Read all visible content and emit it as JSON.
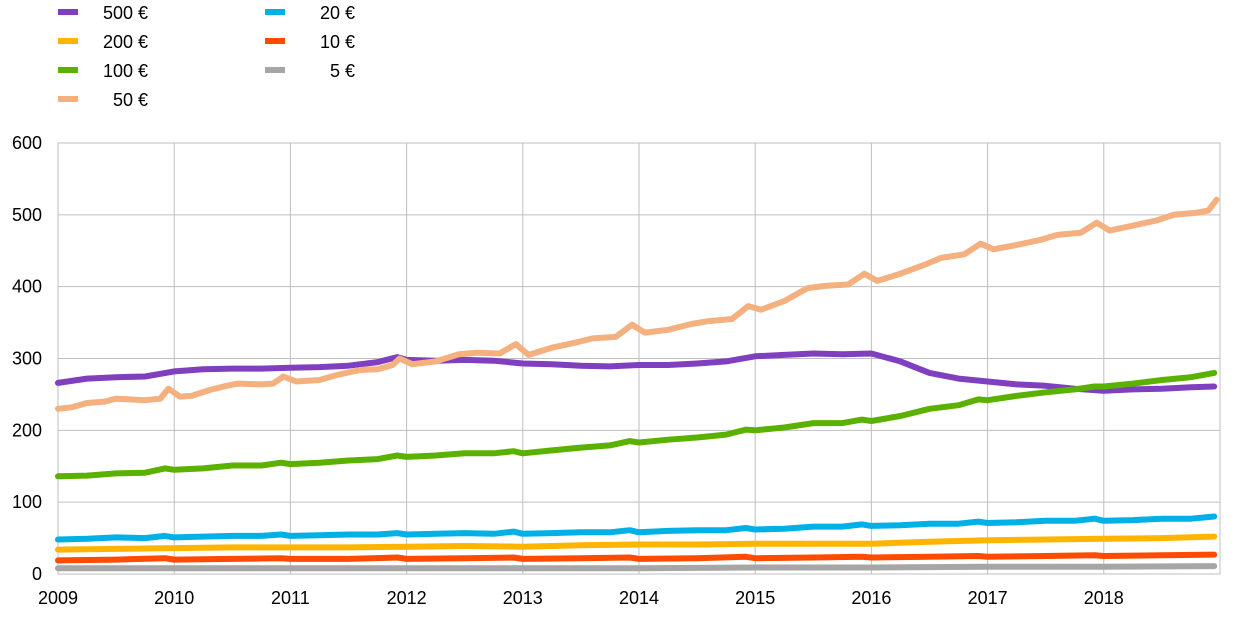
{
  "chart_data": {
    "type": "line",
    "title": "",
    "xlabel": "",
    "ylabel": "",
    "x_start": 2009.0,
    "x_end": 2019.0,
    "x_ticks": [
      "2009",
      "2010",
      "2011",
      "2012",
      "2013",
      "2014",
      "2015",
      "2016",
      "2017",
      "2018"
    ],
    "ylim": [
      0,
      600
    ],
    "y_ticks": [
      "0",
      "100",
      "200",
      "300",
      "400",
      "500",
      "600"
    ],
    "grid": true,
    "legend_position": "top-left",
    "series": [
      {
        "name": "500 €",
        "color": "#7f3fbf",
        "points": [
          [
            2009.0,
            266
          ],
          [
            2009.25,
            272
          ],
          [
            2009.5,
            274
          ],
          [
            2009.75,
            275
          ],
          [
            2010.0,
            282
          ],
          [
            2010.25,
            285
          ],
          [
            2010.5,
            286
          ],
          [
            2010.75,
            286
          ],
          [
            2011.0,
            287
          ],
          [
            2011.25,
            288
          ],
          [
            2011.5,
            290
          ],
          [
            2011.75,
            295
          ],
          [
            2011.92,
            302
          ],
          [
            2012.0,
            298
          ],
          [
            2012.25,
            297
          ],
          [
            2012.5,
            298
          ],
          [
            2012.75,
            297
          ],
          [
            2013.0,
            293
          ],
          [
            2013.25,
            292
          ],
          [
            2013.5,
            290
          ],
          [
            2013.75,
            289
          ],
          [
            2014.0,
            291
          ],
          [
            2014.25,
            291
          ],
          [
            2014.5,
            293
          ],
          [
            2014.75,
            296
          ],
          [
            2015.0,
            303
          ],
          [
            2015.25,
            305
          ],
          [
            2015.5,
            307
          ],
          [
            2015.75,
            306
          ],
          [
            2016.0,
            307
          ],
          [
            2016.25,
            296
          ],
          [
            2016.5,
            280
          ],
          [
            2016.75,
            272
          ],
          [
            2017.0,
            268
          ],
          [
            2017.25,
            264
          ],
          [
            2017.5,
            262
          ],
          [
            2017.75,
            258
          ],
          [
            2018.0,
            255
          ],
          [
            2018.25,
            257
          ],
          [
            2018.5,
            258
          ],
          [
            2018.75,
            260
          ],
          [
            2018.95,
            261
          ]
        ]
      },
      {
        "name": "200 €",
        "color": "#ffb400",
        "points": [
          [
            2009.0,
            34
          ],
          [
            2009.5,
            35
          ],
          [
            2010.0,
            36
          ],
          [
            2010.5,
            37
          ],
          [
            2011.0,
            37
          ],
          [
            2011.5,
            37
          ],
          [
            2012.0,
            38
          ],
          [
            2012.5,
            39
          ],
          [
            2013.0,
            38
          ],
          [
            2013.5,
            40
          ],
          [
            2014.0,
            41
          ],
          [
            2014.5,
            41
          ],
          [
            2015.0,
            42
          ],
          [
            2015.5,
            42
          ],
          [
            2016.0,
            42
          ],
          [
            2016.5,
            45
          ],
          [
            2017.0,
            47
          ],
          [
            2017.5,
            48
          ],
          [
            2018.0,
            49
          ],
          [
            2018.5,
            50
          ],
          [
            2018.95,
            52
          ]
        ]
      },
      {
        "name": "100 €",
        "color": "#5bb100",
        "points": [
          [
            2009.0,
            136
          ],
          [
            2009.25,
            137
          ],
          [
            2009.5,
            140
          ],
          [
            2009.75,
            141
          ],
          [
            2009.92,
            147
          ],
          [
            2010.0,
            145
          ],
          [
            2010.25,
            147
          ],
          [
            2010.5,
            151
          ],
          [
            2010.75,
            151
          ],
          [
            2010.92,
            155
          ],
          [
            2011.0,
            153
          ],
          [
            2011.25,
            155
          ],
          [
            2011.5,
            158
          ],
          [
            2011.75,
            160
          ],
          [
            2011.92,
            165
          ],
          [
            2012.0,
            163
          ],
          [
            2012.25,
            165
          ],
          [
            2012.5,
            168
          ],
          [
            2012.75,
            168
          ],
          [
            2012.92,
            171
          ],
          [
            2013.0,
            168
          ],
          [
            2013.25,
            172
          ],
          [
            2013.5,
            176
          ],
          [
            2013.75,
            179
          ],
          [
            2013.92,
            185
          ],
          [
            2014.0,
            183
          ],
          [
            2014.25,
            187
          ],
          [
            2014.5,
            190
          ],
          [
            2014.75,
            194
          ],
          [
            2014.92,
            201
          ],
          [
            2015.0,
            200
          ],
          [
            2015.25,
            204
          ],
          [
            2015.5,
            210
          ],
          [
            2015.75,
            210
          ],
          [
            2015.92,
            215
          ],
          [
            2016.0,
            213
          ],
          [
            2016.25,
            220
          ],
          [
            2016.5,
            230
          ],
          [
            2016.75,
            235
          ],
          [
            2016.92,
            243
          ],
          [
            2017.0,
            242
          ],
          [
            2017.25,
            248
          ],
          [
            2017.5,
            253
          ],
          [
            2017.75,
            257
          ],
          [
            2017.92,
            261
          ],
          [
            2018.0,
            261
          ],
          [
            2018.25,
            265
          ],
          [
            2018.5,
            270
          ],
          [
            2018.75,
            274
          ],
          [
            2018.95,
            280
          ]
        ]
      },
      {
        "name": "50 €",
        "color": "#f5b080",
        "points": [
          [
            2009.0,
            230
          ],
          [
            2009.12,
            232
          ],
          [
            2009.25,
            238
          ],
          [
            2009.4,
            240
          ],
          [
            2009.5,
            244
          ],
          [
            2009.75,
            242
          ],
          [
            2009.88,
            244
          ],
          [
            2009.95,
            258
          ],
          [
            2010.05,
            247
          ],
          [
            2010.15,
            248
          ],
          [
            2010.3,
            256
          ],
          [
            2010.45,
            262
          ],
          [
            2010.55,
            265
          ],
          [
            2010.75,
            264
          ],
          [
            2010.85,
            265
          ],
          [
            2010.94,
            275
          ],
          [
            2011.05,
            268
          ],
          [
            2011.25,
            270
          ],
          [
            2011.4,
            277
          ],
          [
            2011.6,
            284
          ],
          [
            2011.75,
            285
          ],
          [
            2011.88,
            291
          ],
          [
            2011.94,
            300
          ],
          [
            2012.05,
            292
          ],
          [
            2012.25,
            296
          ],
          [
            2012.45,
            306
          ],
          [
            2012.6,
            308
          ],
          [
            2012.8,
            307
          ],
          [
            2012.94,
            320
          ],
          [
            2013.05,
            305
          ],
          [
            2013.25,
            315
          ],
          [
            2013.45,
            322
          ],
          [
            2013.6,
            328
          ],
          [
            2013.8,
            330
          ],
          [
            2013.94,
            347
          ],
          [
            2014.05,
            336
          ],
          [
            2014.25,
            340
          ],
          [
            2014.45,
            348
          ],
          [
            2014.6,
            352
          ],
          [
            2014.8,
            355
          ],
          [
            2014.94,
            373
          ],
          [
            2015.05,
            368
          ],
          [
            2015.25,
            380
          ],
          [
            2015.45,
            398
          ],
          [
            2015.6,
            401
          ],
          [
            2015.8,
            403
          ],
          [
            2015.94,
            418
          ],
          [
            2016.05,
            408
          ],
          [
            2016.25,
            418
          ],
          [
            2016.45,
            430
          ],
          [
            2016.6,
            440
          ],
          [
            2016.8,
            445
          ],
          [
            2016.94,
            460
          ],
          [
            2017.05,
            452
          ],
          [
            2017.25,
            458
          ],
          [
            2017.45,
            465
          ],
          [
            2017.6,
            472
          ],
          [
            2017.8,
            475
          ],
          [
            2017.94,
            489
          ],
          [
            2018.05,
            478
          ],
          [
            2018.25,
            485
          ],
          [
            2018.45,
            492
          ],
          [
            2018.6,
            500
          ],
          [
            2018.8,
            503
          ],
          [
            2018.9,
            506
          ],
          [
            2018.97,
            521
          ]
        ]
      },
      {
        "name": "20 €",
        "color": "#00b0e6",
        "points": [
          [
            2009.0,
            48
          ],
          [
            2009.25,
            49
          ],
          [
            2009.5,
            51
          ],
          [
            2009.75,
            50
          ],
          [
            2009.92,
            53
          ],
          [
            2010.0,
            51
          ],
          [
            2010.25,
            52
          ],
          [
            2010.5,
            53
          ],
          [
            2010.75,
            53
          ],
          [
            2010.92,
            55
          ],
          [
            2011.0,
            53
          ],
          [
            2011.25,
            54
          ],
          [
            2011.5,
            55
          ],
          [
            2011.75,
            55
          ],
          [
            2011.92,
            57
          ],
          [
            2012.0,
            55
          ],
          [
            2012.25,
            56
          ],
          [
            2012.5,
            57
          ],
          [
            2012.75,
            56
          ],
          [
            2012.92,
            59
          ],
          [
            2013.0,
            56
          ],
          [
            2013.25,
            57
          ],
          [
            2013.5,
            58
          ],
          [
            2013.75,
            58
          ],
          [
            2013.92,
            61
          ],
          [
            2014.0,
            58
          ],
          [
            2014.25,
            60
          ],
          [
            2014.5,
            61
          ],
          [
            2014.75,
            61
          ],
          [
            2014.92,
            64
          ],
          [
            2015.0,
            62
          ],
          [
            2015.25,
            63
          ],
          [
            2015.5,
            66
          ],
          [
            2015.75,
            66
          ],
          [
            2015.92,
            69
          ],
          [
            2016.0,
            67
          ],
          [
            2016.25,
            68
          ],
          [
            2016.5,
            70
          ],
          [
            2016.75,
            70
          ],
          [
            2016.92,
            73
          ],
          [
            2017.0,
            71
          ],
          [
            2017.25,
            72
          ],
          [
            2017.5,
            74
          ],
          [
            2017.75,
            74
          ],
          [
            2017.92,
            77
          ],
          [
            2018.0,
            74
          ],
          [
            2018.25,
            75
          ],
          [
            2018.5,
            77
          ],
          [
            2018.75,
            77
          ],
          [
            2018.95,
            80
          ]
        ]
      },
      {
        "name": "10 €",
        "color": "#ff4b00",
        "points": [
          [
            2009.0,
            19
          ],
          [
            2009.5,
            20
          ],
          [
            2009.92,
            22
          ],
          [
            2010.0,
            20
          ],
          [
            2010.5,
            21
          ],
          [
            2010.92,
            22
          ],
          [
            2011.0,
            21
          ],
          [
            2011.5,
            21
          ],
          [
            2011.92,
            23
          ],
          [
            2012.0,
            21
          ],
          [
            2012.5,
            22
          ],
          [
            2012.92,
            23
          ],
          [
            2013.0,
            21
          ],
          [
            2013.5,
            22
          ],
          [
            2013.92,
            23
          ],
          [
            2014.0,
            21
          ],
          [
            2014.5,
            22
          ],
          [
            2014.92,
            24
          ],
          [
            2015.0,
            22
          ],
          [
            2015.5,
            23
          ],
          [
            2015.92,
            24
          ],
          [
            2016.0,
            23
          ],
          [
            2016.5,
            24
          ],
          [
            2016.92,
            25
          ],
          [
            2017.0,
            24
          ],
          [
            2017.5,
            25
          ],
          [
            2017.92,
            26
          ],
          [
            2018.0,
            25
          ],
          [
            2018.5,
            26
          ],
          [
            2018.95,
            27
          ]
        ]
      },
      {
        "name": "5 €",
        "color": "#a6a6a6",
        "points": [
          [
            2009.0,
            8
          ],
          [
            2010.0,
            8
          ],
          [
            2011.0,
            8
          ],
          [
            2012.0,
            8
          ],
          [
            2013.0,
            8
          ],
          [
            2014.0,
            8
          ],
          [
            2015.0,
            9
          ],
          [
            2016.0,
            9
          ],
          [
            2017.0,
            10
          ],
          [
            2018.0,
            10
          ],
          [
            2018.95,
            11
          ]
        ]
      }
    ]
  }
}
